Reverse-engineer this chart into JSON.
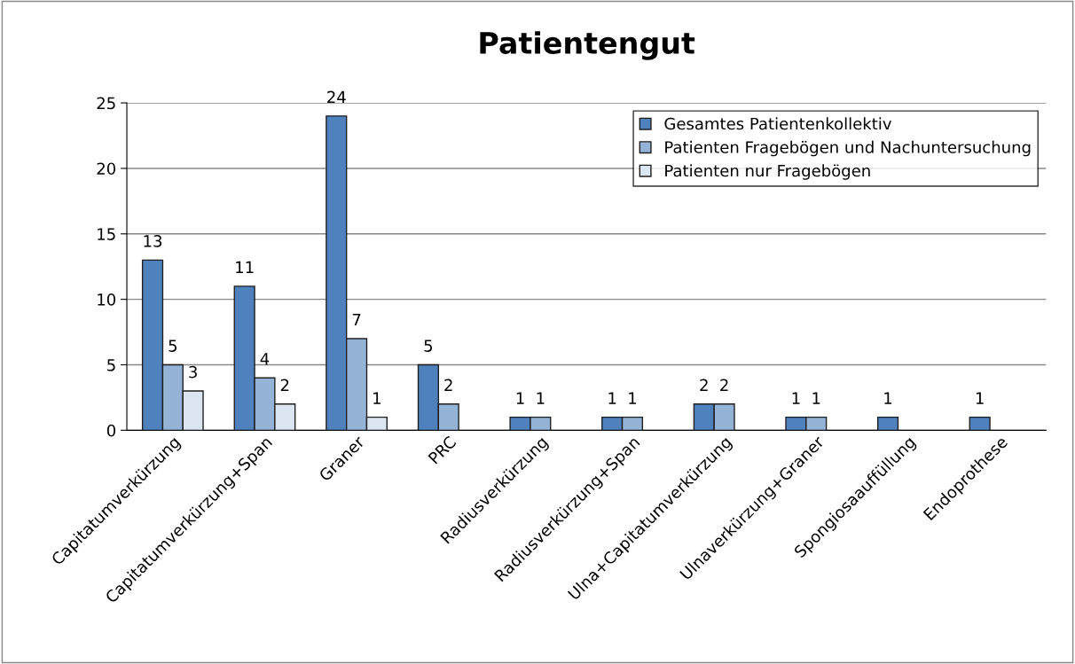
{
  "chart_data": {
    "type": "bar",
    "title": "Patientengut",
    "categories": [
      "Capitatumverkürzung",
      "Capitatumverkürzung+Span",
      "Graner",
      "PRC",
      "Radiusverkürzung",
      "Radiusverkürzung+Span",
      "Ulna+Capitatumverkürzung",
      "Ulnaverkürzung+Graner",
      "Spongiosaauffüllung",
      "Endoprothese"
    ],
    "series": [
      {
        "name": "Gesamtes Patientenkollektiv",
        "color": "#4f81bd",
        "values": [
          13,
          11,
          24,
          5,
          1,
          1,
          2,
          1,
          1,
          1
        ]
      },
      {
        "name": "Patienten Fragebögen und Nachuntersuchung",
        "color": "#95b3d7",
        "values": [
          5,
          4,
          7,
          2,
          1,
          1,
          2,
          1,
          null,
          null
        ]
      },
      {
        "name": "Patienten nur Fragebögen",
        "color": "#dce6f2",
        "values": [
          3,
          2,
          1,
          null,
          null,
          null,
          null,
          null,
          null,
          null
        ]
      }
    ],
    "ylim": [
      0,
      25
    ],
    "yticks": [
      0,
      5,
      10,
      15,
      20,
      25
    ],
    "grid": "y",
    "legend": "top right",
    "data_labels": true
  }
}
